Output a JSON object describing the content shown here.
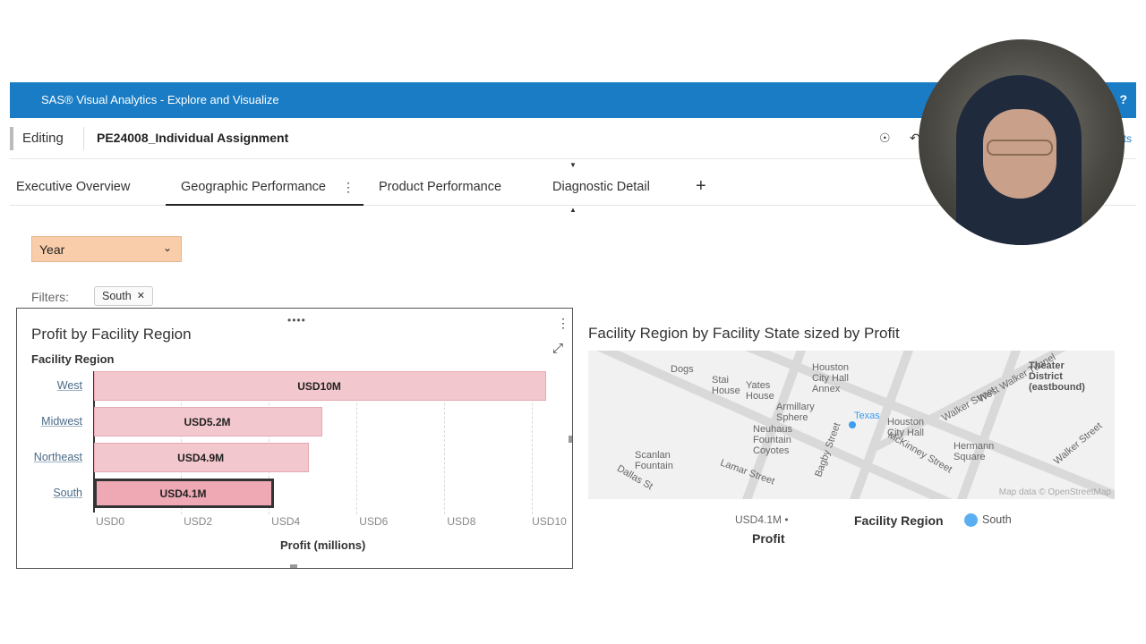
{
  "app": {
    "title": "SAS® Visual Analytics - Explore and Visualize",
    "help": "?"
  },
  "toolbar": {
    "mode": "Editing",
    "report_name": "PE24008_Individual Assignment",
    "right_text": "ts"
  },
  "tabs": [
    {
      "label": "Executive Overview"
    },
    {
      "label": "Geographic Performance"
    },
    {
      "label": "Product Performance"
    },
    {
      "label": "Diagnostic Detail"
    }
  ],
  "tabs_add": "+",
  "controls": {
    "year_label": "Year"
  },
  "filters": {
    "label": "Filters:",
    "chips": [
      {
        "label": "South"
      }
    ]
  },
  "bar_chart": {
    "title": "Profit by Facility Region",
    "y_axis_title": "Facility Region",
    "x_axis_title": "Profit (millions)"
  },
  "chart_data": {
    "type": "bar",
    "orientation": "horizontal",
    "title": "Profit by Facility Region",
    "xlabel": "Profit (millions)",
    "ylabel": "Facility Region",
    "categories": [
      "West",
      "Midwest",
      "Northeast",
      "South"
    ],
    "values": [
      10.3,
      5.2,
      4.9,
      4.1
    ],
    "data_labels": [
      "USD10M",
      "USD5.2M",
      "USD4.9M",
      "USD4.1M"
    ],
    "selected": "South",
    "xlim": [
      0,
      10.5
    ],
    "xticks": [
      0,
      2,
      4,
      6,
      8,
      10
    ],
    "xtick_labels": [
      "USD0",
      "USD2",
      "USD4",
      "USD6",
      "USD8",
      "USD10"
    ],
    "color": "#f2c7cd"
  },
  "map_chart": {
    "title": "Facility Region by Facility State sized by Profit",
    "labels": [
      "Dogs",
      "Houston City Hall Annex",
      "Stai House",
      "Yates House",
      "Armillary Sphere",
      "Texas",
      "Houston City Hall",
      "Theater District (eastbound)",
      "West Walker Tunnel",
      "Walker Street",
      "Neuhaus Fountain Coyotes",
      "Scanlan Fountain",
      "Lamar Street",
      "Dallas St",
      "Bagby Street",
      "McKinney Street",
      "Hermann Square",
      "Walker Street"
    ],
    "attribution": "Map data © OpenStreetMap",
    "size_legend_value": "USD4.1M",
    "size_legend_title": "Profit",
    "color_legend_title": "Facility Region",
    "color_legend_item": "South",
    "dot_color": "#3b9cf0"
  }
}
